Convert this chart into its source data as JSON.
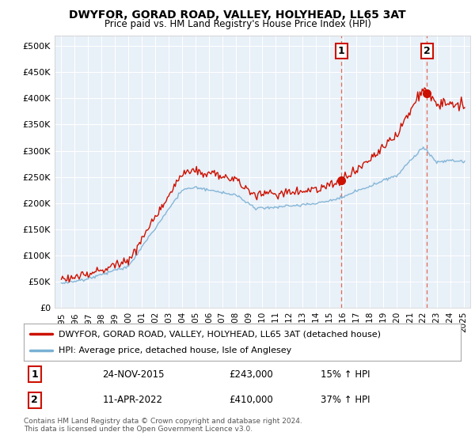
{
  "title": "DWYFOR, GORAD ROAD, VALLEY, HOLYHEAD, LL65 3AT",
  "subtitle": "Price paid vs. HM Land Registry's House Price Index (HPI)",
  "legend_line1": "DWYFOR, GORAD ROAD, VALLEY, HOLYHEAD, LL65 3AT (detached house)",
  "legend_line2": "HPI: Average price, detached house, Isle of Anglesey",
  "transaction1_date": "24-NOV-2015",
  "transaction1_price": "£243,000",
  "transaction1_hpi": "15% ↑ HPI",
  "transaction2_date": "11-APR-2022",
  "transaction2_price": "£410,000",
  "transaction2_hpi": "37% ↑ HPI",
  "footer": "Contains HM Land Registry data © Crown copyright and database right 2024.\nThis data is licensed under the Open Government Licence v3.0.",
  "hpi_color": "#7ab0d4",
  "price_color": "#cc1100",
  "marker1_x": 2015.9,
  "marker1_y": 243000,
  "marker2_x": 2022.28,
  "marker2_y": 410000,
  "vline1_x": 2015.9,
  "vline2_x": 2022.28,
  "ylim_min": 0,
  "ylim_max": 520000,
  "xlim_min": 1994.5,
  "xlim_max": 2025.5,
  "yticks": [
    0,
    50000,
    100000,
    150000,
    200000,
    250000,
    300000,
    350000,
    400000,
    450000,
    500000
  ],
  "xtick_years": [
    1995,
    1996,
    1997,
    1998,
    1999,
    2000,
    2001,
    2002,
    2003,
    2004,
    2005,
    2006,
    2007,
    2008,
    2009,
    2010,
    2011,
    2012,
    2013,
    2014,
    2015,
    2016,
    2017,
    2018,
    2019,
    2020,
    2021,
    2022,
    2023,
    2024,
    2025
  ],
  "bg_color": "#e8f0f8"
}
